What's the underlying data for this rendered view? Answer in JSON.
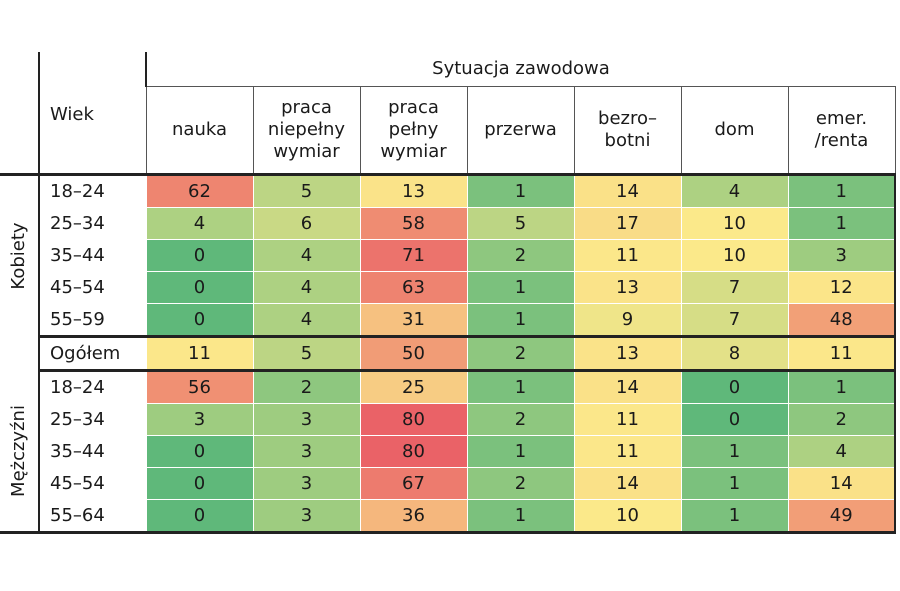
{
  "chart_data": {
    "type": "heatmap",
    "header_group": "Sytuacja zawodowa",
    "row_header": "Wiek",
    "columns": [
      "nauka",
      "praca\nniepełny\nwymiar",
      "praca\npełny\nwymiar",
      "przerwa",
      "bezro–\nbotni",
      "dom",
      "emer.\n/renta"
    ],
    "groups": [
      {
        "name": "Kobiety",
        "rows": [
          {
            "label": "18–24",
            "values": [
              62,
              5,
              13,
              1,
              14,
              4,
              1
            ]
          },
          {
            "label": "25–34",
            "values": [
              4,
              6,
              58,
              5,
              17,
              10,
              1
            ]
          },
          {
            "label": "35–44",
            "values": [
              0,
              4,
              71,
              2,
              11,
              10,
              3
            ]
          },
          {
            "label": "45–54",
            "values": [
              0,
              4,
              63,
              1,
              13,
              7,
              12
            ]
          },
          {
            "label": "55–59",
            "values": [
              0,
              4,
              31,
              1,
              9,
              7,
              48
            ]
          }
        ]
      },
      {
        "name": "",
        "rows": [
          {
            "label": "Ogółem",
            "values": [
              11,
              5,
              50,
              2,
              13,
              8,
              11
            ]
          }
        ]
      },
      {
        "name": "Mężczyźni",
        "rows": [
          {
            "label": "18–24",
            "values": [
              56,
              2,
              25,
              1,
              14,
              0,
              1
            ]
          },
          {
            "label": "25–34",
            "values": [
              3,
              3,
              80,
              2,
              11,
              0,
              2
            ]
          },
          {
            "label": "35–44",
            "values": [
              0,
              3,
              80,
              1,
              11,
              1,
              4
            ]
          },
          {
            "label": "45–54",
            "values": [
              0,
              3,
              67,
              2,
              14,
              1,
              14
            ]
          },
          {
            "label": "55–64",
            "values": [
              0,
              3,
              36,
              1,
              10,
              1,
              49
            ]
          }
        ]
      }
    ],
    "color_scale": {
      "low": "#5fb87a",
      "mid": "#fbe98a",
      "high": "#ea6267"
    }
  }
}
